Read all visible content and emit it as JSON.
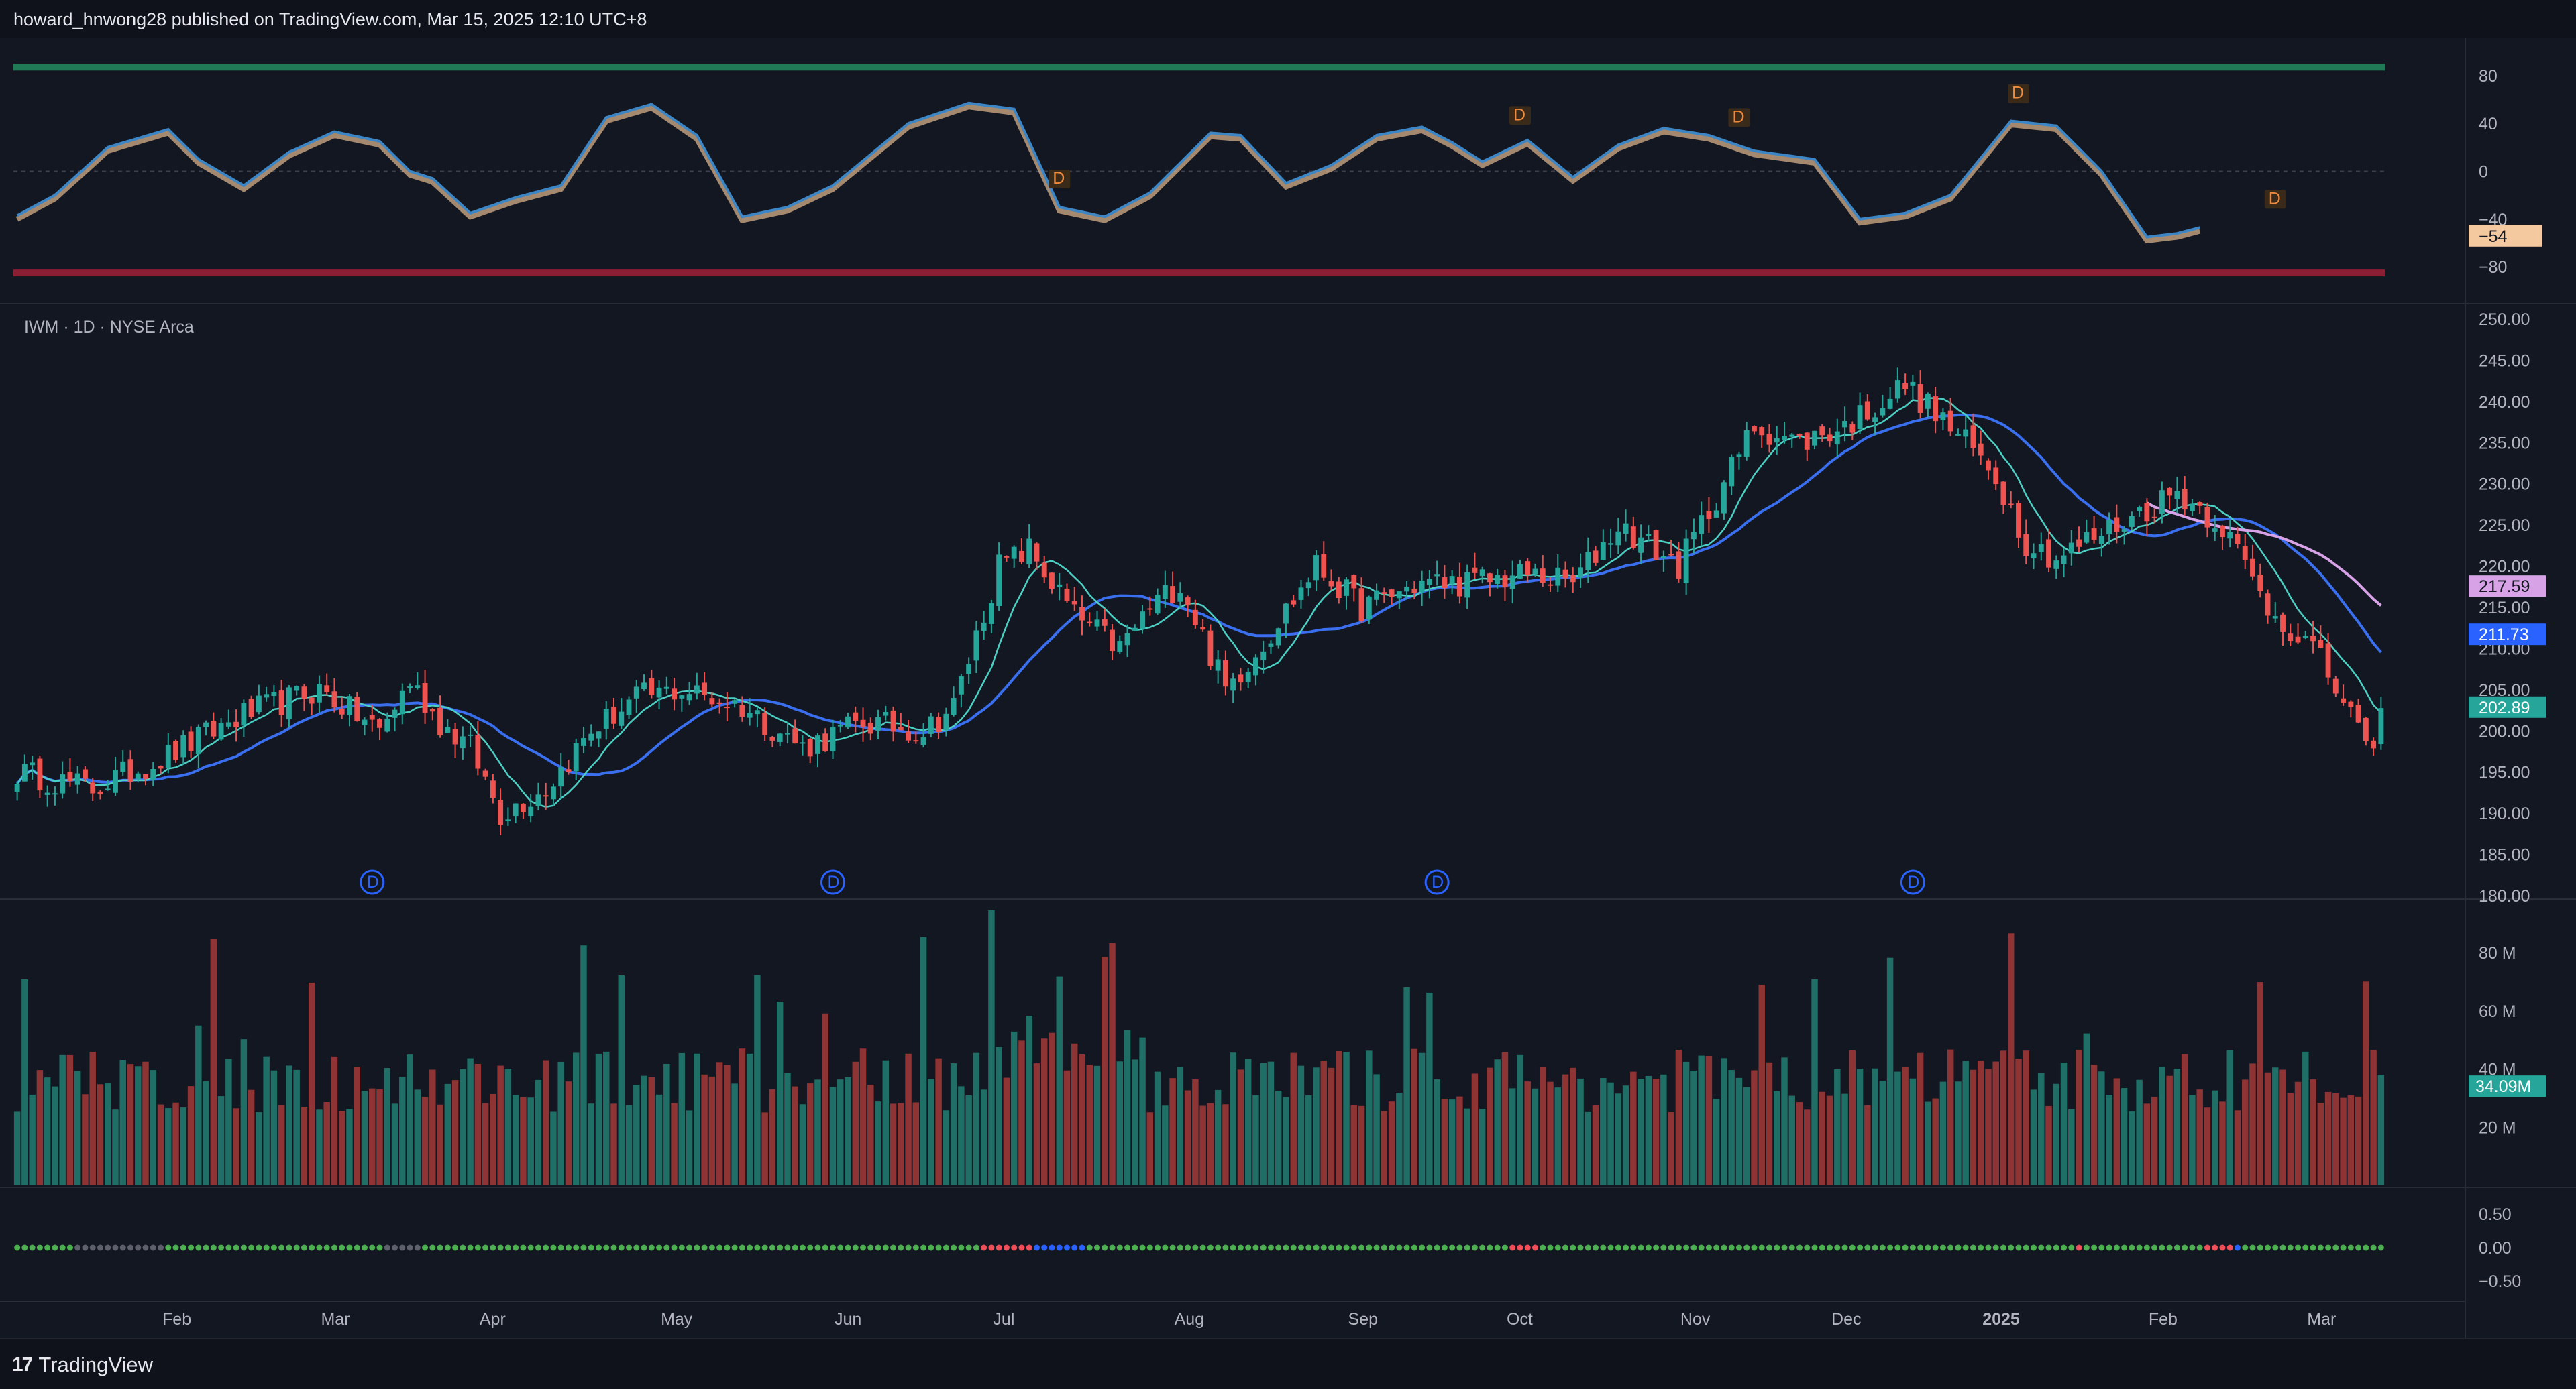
{
  "header": {
    "publisher": "howard_hnwong28 published on TradingView.com, Mar 15, 2025 12:10 UTC+8"
  },
  "footer": {
    "brand": "TradingView",
    "brand_mark": "17"
  },
  "colors": {
    "background": "#131722",
    "up": "#26a69a",
    "down": "#ef5350",
    "ma_fast": "#4dd0c4",
    "ma_mid": "#3a6ff0",
    "ma_slow": "#d7a3e6"
  },
  "chart_data": [
    {
      "type": "line",
      "panel": "oscillator",
      "ylim": [
        -90,
        95
      ],
      "y_ticks": [
        "80",
        "40",
        "0",
        "−40",
        "−80"
      ],
      "last_value_label": "−54",
      "keypoints": [
        [
          0,
          -37
        ],
        [
          5,
          -20
        ],
        [
          12,
          20
        ],
        [
          20,
          35
        ],
        [
          24,
          10
        ],
        [
          30,
          -12
        ],
        [
          36,
          16
        ],
        [
          42,
          33
        ],
        [
          48,
          25
        ],
        [
          52,
          0
        ],
        [
          55,
          -6
        ],
        [
          60,
          -35
        ],
        [
          66,
          -22
        ],
        [
          72,
          -12
        ],
        [
          78,
          45
        ],
        [
          84,
          56
        ],
        [
          90,
          30
        ],
        [
          96,
          -38
        ],
        [
          102,
          -30
        ],
        [
          108,
          -12
        ],
        [
          118,
          40
        ],
        [
          126,
          57
        ],
        [
          132,
          52
        ],
        [
          138,
          -30
        ],
        [
          144,
          -38
        ],
        [
          150,
          -18
        ],
        [
          158,
          32
        ],
        [
          162,
          30
        ],
        [
          168,
          -10
        ],
        [
          174,
          5
        ],
        [
          180,
          30
        ],
        [
          186,
          37
        ],
        [
          190,
          24
        ],
        [
          194,
          8
        ],
        [
          200,
          26
        ],
        [
          206,
          -5
        ],
        [
          212,
          22
        ],
        [
          218,
          36
        ],
        [
          224,
          30
        ],
        [
          230,
          17
        ],
        [
          238,
          10
        ],
        [
          244,
          -40
        ],
        [
          250,
          -35
        ],
        [
          256,
          -20
        ],
        [
          264,
          42
        ],
        [
          270,
          38
        ],
        [
          276,
          0
        ],
        [
          282,
          -55
        ],
        [
          286,
          -52
        ],
        [
          289,
          -47
        ]
      ],
      "divergence_labels": [
        "D",
        "D",
        "D",
        "D",
        "D"
      ]
    },
    {
      "type": "candlestick",
      "panel": "price",
      "title": "IWM · 1D · NYSE Arca",
      "ylim": [
        180,
        250
      ],
      "y_ticks": [
        "250.00",
        "245.00",
        "240.00",
        "235.00",
        "230.00",
        "225.00",
        "220.00",
        "215.00",
        "210.00",
        "205.00",
        "200.00",
        "195.00",
        "190.00",
        "185.00",
        "180.00"
      ],
      "price_labels": {
        "ma_slow": "217.59",
        "ma_mid": "211.73",
        "last": "202.89"
      },
      "dividend_marker": "D",
      "close_keypoints": [
        [
          0,
          195
        ],
        [
          10,
          193
        ],
        [
          20,
          197
        ],
        [
          30,
          202
        ],
        [
          40,
          205
        ],
        [
          48,
          200
        ],
        [
          52,
          206
        ],
        [
          56,
          201
        ],
        [
          60,
          198
        ],
        [
          64,
          190
        ],
        [
          70,
          193
        ],
        [
          76,
          200
        ],
        [
          82,
          204
        ],
        [
          88,
          205
        ],
        [
          96,
          203
        ],
        [
          104,
          198
        ],
        [
          112,
          201
        ],
        [
          120,
          200
        ],
        [
          124,
          203
        ],
        [
          130,
          220
        ],
        [
          134,
          222
        ],
        [
          140,
          214
        ],
        [
          146,
          210
        ],
        [
          150,
          215
        ],
        [
          154,
          218
        ],
        [
          160,
          205
        ],
        [
          166,
          212
        ],
        [
          172,
          220
        ],
        [
          178,
          215
        ],
        [
          186,
          218
        ],
        [
          192,
          218
        ],
        [
          200,
          219
        ],
        [
          206,
          218
        ],
        [
          212,
          225
        ],
        [
          220,
          220
        ],
        [
          230,
          237
        ],
        [
          236,
          235
        ],
        [
          242,
          237
        ],
        [
          250,
          242
        ],
        [
          258,
          235
        ],
        [
          262,
          231
        ],
        [
          266,
          223
        ],
        [
          270,
          221
        ],
        [
          276,
          224
        ],
        [
          280,
          226
        ],
        [
          286,
          229
        ],
        [
          292,
          225
        ],
        [
          298,
          215
        ],
        [
          304,
          210
        ],
        [
          309,
          202
        ],
        [
          311,
          197
        ],
        [
          313,
          202
        ]
      ]
    },
    {
      "type": "bar",
      "panel": "volume",
      "ylim": [
        0,
        95
      ],
      "y_ticks": [
        "80 M",
        "60 M",
        "40 M",
        "20 M"
      ],
      "last_value_label": "34.09M",
      "units": "M shares"
    },
    {
      "type": "scatter",
      "panel": "signal",
      "ylim": [
        -0.75,
        0.75
      ],
      "y_ticks": [
        "0.50",
        "0.00",
        "−0.50"
      ],
      "series": [
        {
          "values_all": 0.0
        }
      ]
    }
  ],
  "x_axis": {
    "labels": [
      "Feb",
      "Mar",
      "Apr",
      "May",
      "Jun",
      "Jul",
      "Aug",
      "Sep",
      "Oct",
      "Nov",
      "Dec",
      "2025",
      "Feb",
      "Mar"
    ]
  }
}
